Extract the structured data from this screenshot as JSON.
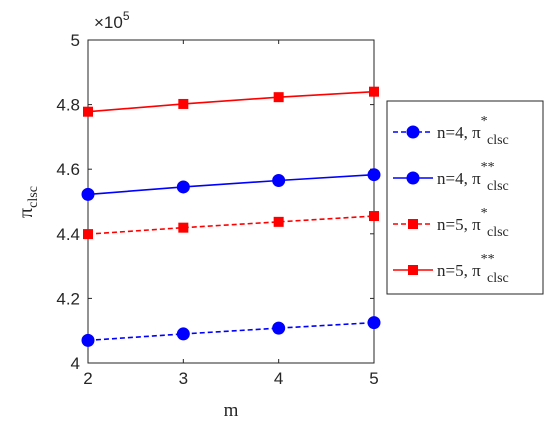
{
  "chart_data": {
    "type": "line",
    "xlabel": "m",
    "ylabel": "π",
    "ylabel_sub": "clsc",
    "exponent_label": "×10",
    "exponent_power": "5",
    "xlim": [
      2,
      5
    ],
    "ylim": [
      4.0,
      5.0
    ],
    "x": [
      2,
      3,
      4,
      5
    ],
    "xticks": [
      "2",
      "3",
      "4",
      "5"
    ],
    "yticks": [
      {
        "value": 4.0,
        "label": "4"
      },
      {
        "value": 4.2,
        "label": "4.2"
      },
      {
        "value": 4.4,
        "label": "4.4"
      },
      {
        "value": 4.6,
        "label": "4.6"
      },
      {
        "value": 4.8,
        "label": "4.8"
      },
      {
        "value": 5.0,
        "label": "5"
      }
    ],
    "grid": false,
    "legend_position": "outside-right",
    "series": [
      {
        "name": "n=4, π",
        "sub": "clsc",
        "sup": "*",
        "values": [
          4.07,
          4.09,
          4.108,
          4.125
        ],
        "color": "#0000FF",
        "marker_color": "#0000FF",
        "marker": "circle",
        "dash": true
      },
      {
        "name": "n=4, π",
        "sub": "clsc",
        "sup": "**",
        "values": [
          4.522,
          4.545,
          4.565,
          4.583
        ],
        "color": "#0000FF",
        "marker_color": "#0000FF",
        "marker": "circle",
        "dash": false
      },
      {
        "name": "n=5, π",
        "sub": "clsc",
        "sup": "*",
        "values": [
          4.399,
          4.419,
          4.437,
          4.455
        ],
        "color": "#FF0000",
        "marker_color": "#FF0000",
        "marker": "square",
        "dash": true
      },
      {
        "name": "n=5, π",
        "sub": "clsc",
        "sup": "**",
        "values": [
          4.778,
          4.802,
          4.823,
          4.84
        ],
        "color": "#FF0000",
        "marker_color": "#FF0000",
        "marker": "square",
        "dash": false
      }
    ]
  }
}
